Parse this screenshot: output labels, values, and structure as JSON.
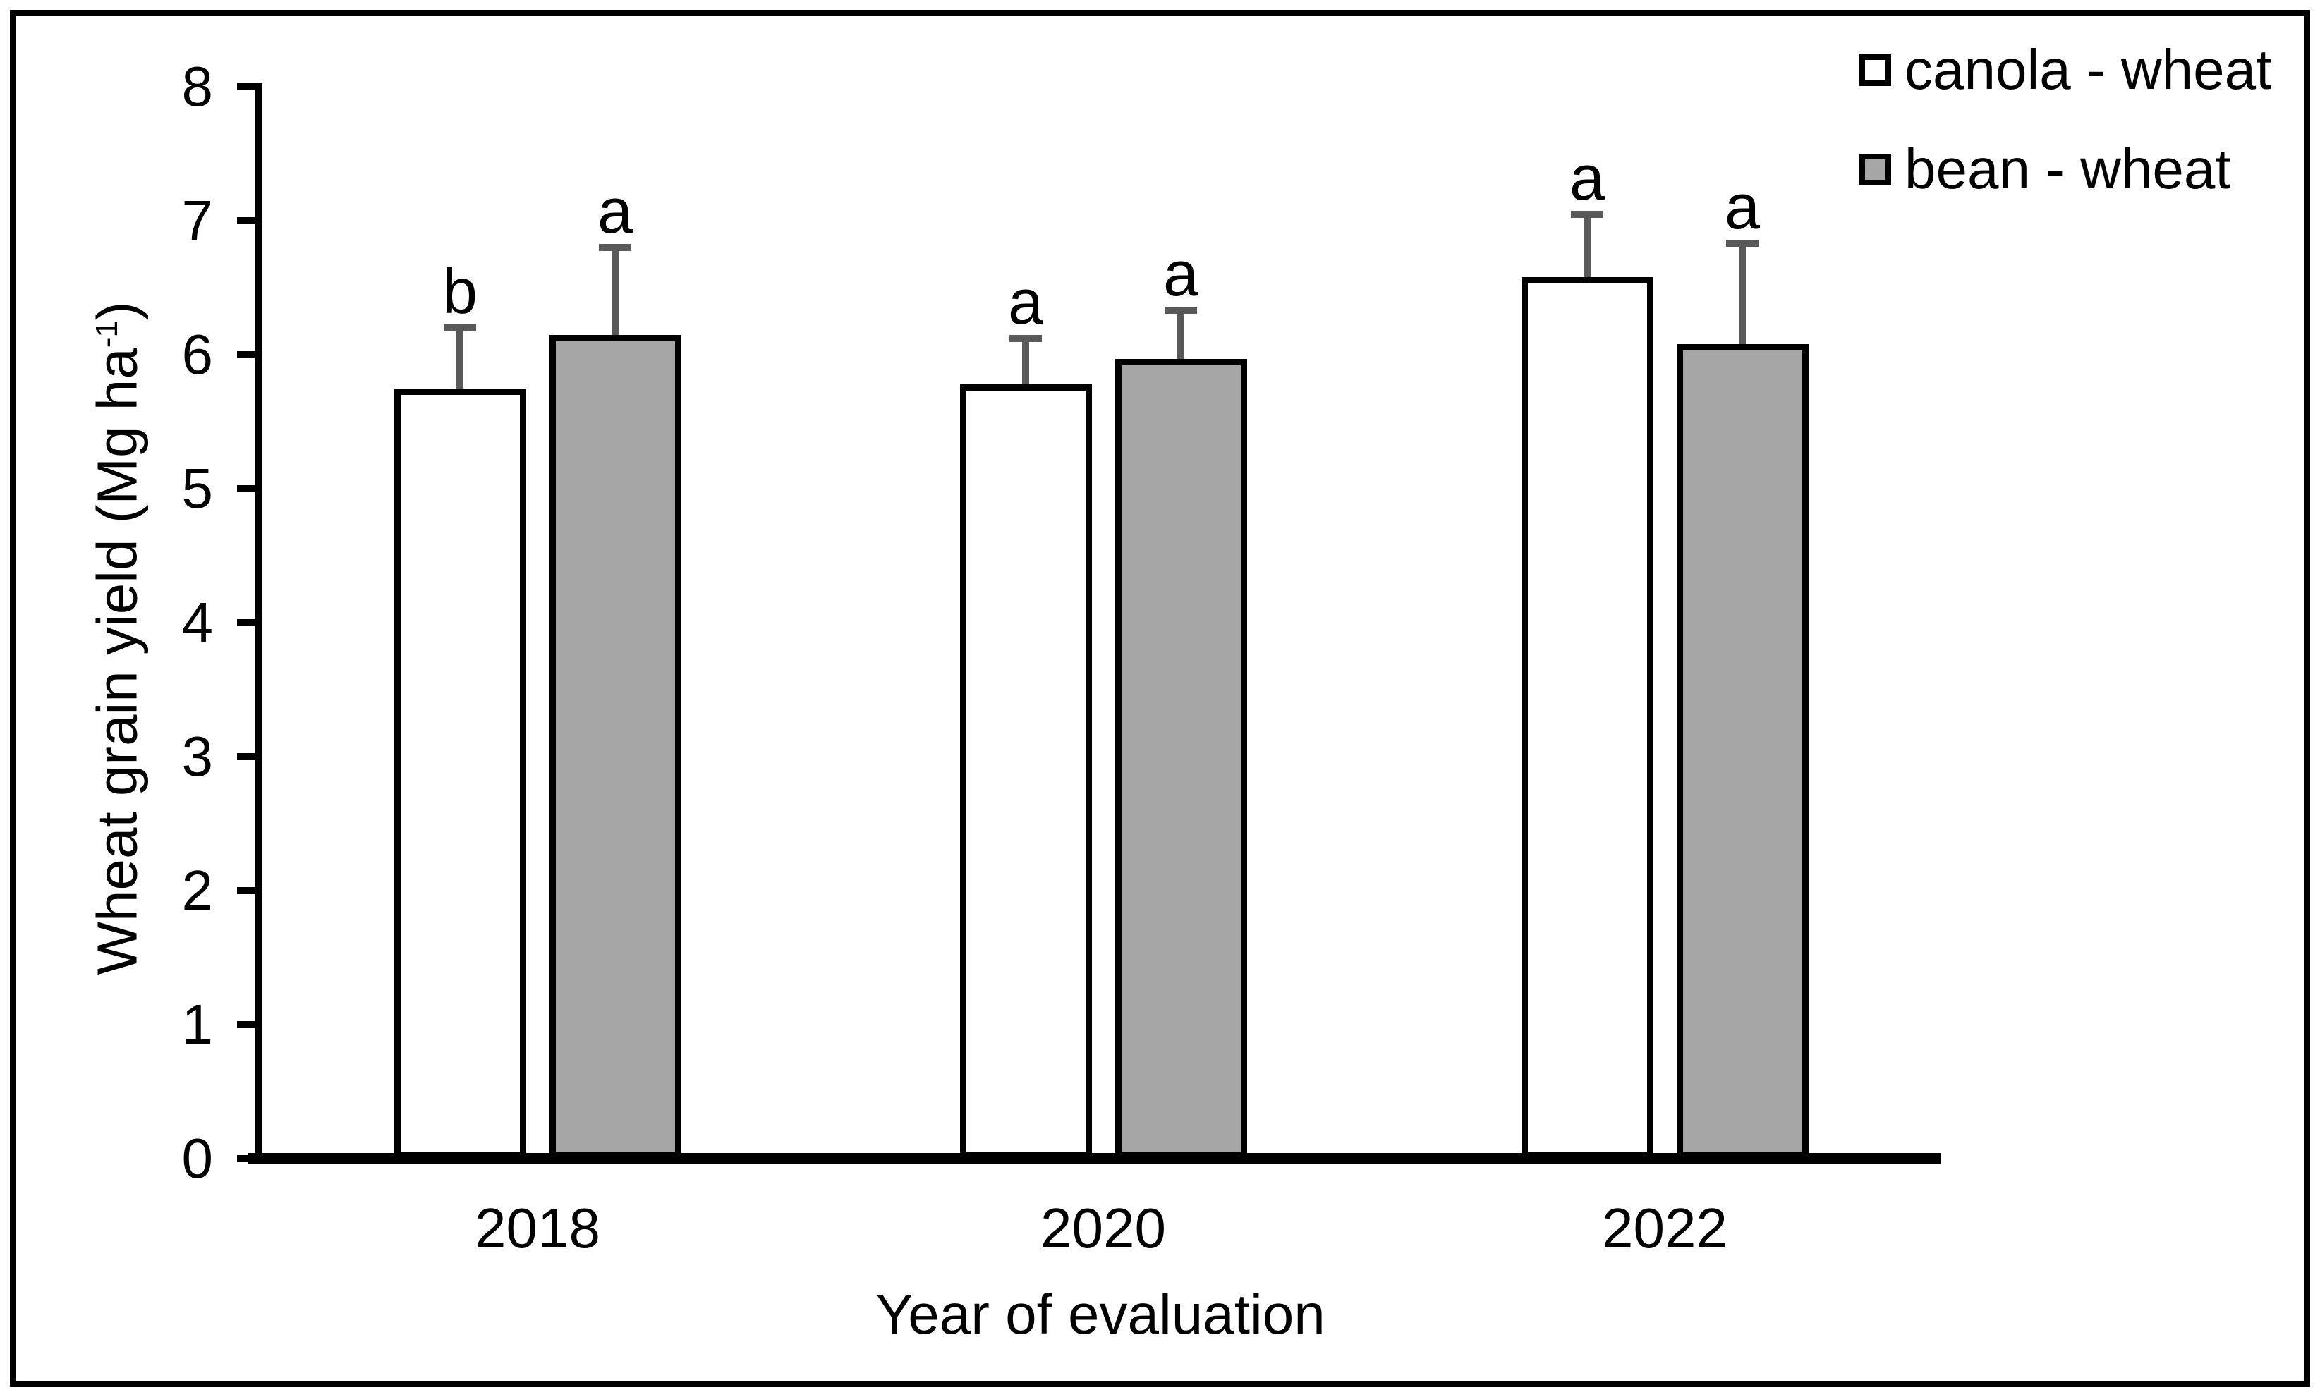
{
  "chart_data": {
    "type": "bar",
    "title": "",
    "categories": [
      "2018",
      "2020",
      "2022"
    ],
    "series": [
      {
        "name": "canola - wheat",
        "fill": "#ffffff",
        "values": [
          5.75,
          5.78,
          6.58
        ],
        "errors_plus": [
          0.45,
          0.34,
          0.47
        ],
        "sig_letters": [
          "b",
          "a",
          "a"
        ]
      },
      {
        "name": "bean - wheat",
        "fill": "#a6a6a6",
        "values": [
          6.15,
          5.97,
          6.08
        ],
        "errors_plus": [
          0.65,
          0.36,
          0.75
        ],
        "sig_letters": [
          "a",
          "a",
          "a"
        ]
      }
    ],
    "xlabel": "Year of evaluation",
    "ylabel": "Wheat grain yield (Mg ha-1)",
    "ylabel_parts": {
      "text": "Wheat grain yield (Mg ha",
      "sup": "-1",
      "end": ")"
    },
    "ylim": [
      0,
      8
    ],
    "yticks": [
      0,
      1,
      2,
      3,
      4,
      5,
      6,
      7,
      8
    ],
    "ytick_step": 1,
    "grid": false,
    "legend_position": "top-right",
    "colors": {
      "bar_border": "#000000",
      "error_bar": "#595959",
      "text": "#000000",
      "background": "#ffffff",
      "frame": "#000000"
    }
  }
}
